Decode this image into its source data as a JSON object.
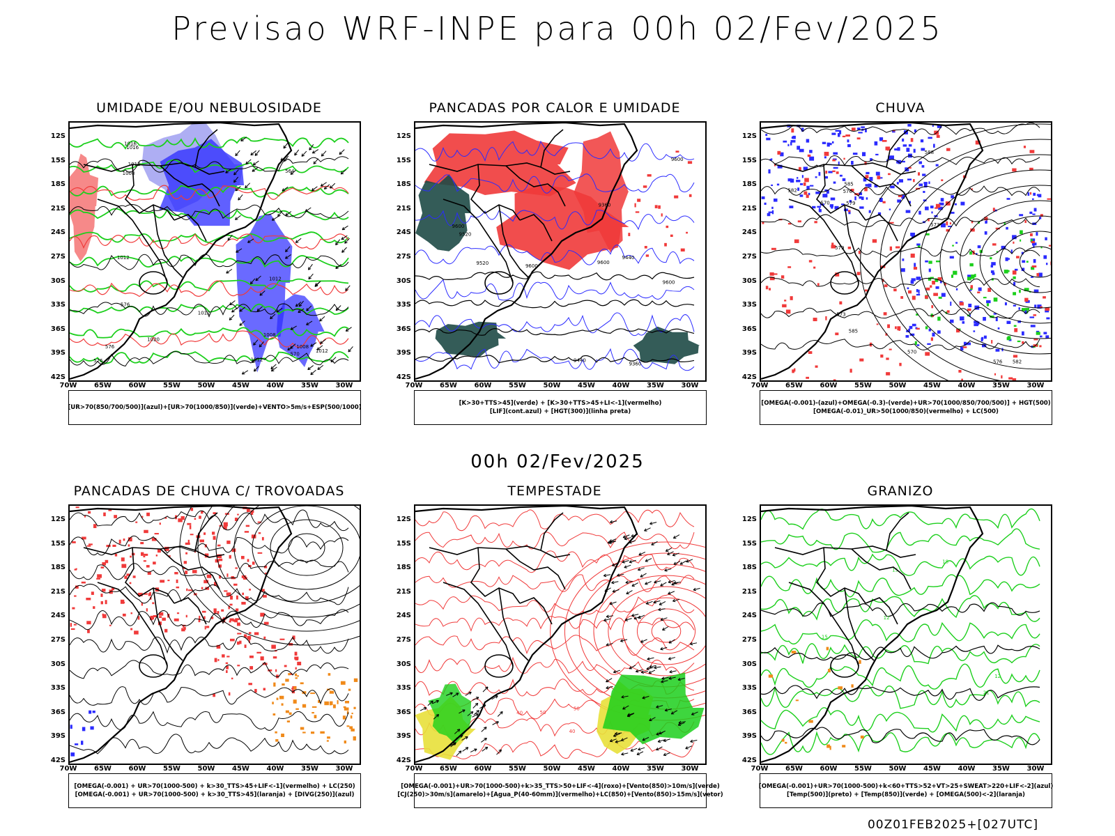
{
  "header": {
    "title": "Previsao WRF-INPE  para 00h 02/Fev/2025",
    "middle_date": "00h 02/Fev/2025",
    "footer_stamp": "00Z01FEB2025+[027UTC]"
  },
  "axes": {
    "lat_labels": [
      "12S",
      "15S",
      "18S",
      "21S",
      "24S",
      "27S",
      "30S",
      "33S",
      "36S",
      "39S",
      "42S"
    ],
    "lon_labels": [
      "70W",
      "65W",
      "60W",
      "55W",
      "50W",
      "45W",
      "40W",
      "35W",
      "30W"
    ]
  },
  "colors": {
    "blue": "#2b2bff",
    "light_blue": "#9a9af0",
    "green": "#1ccf1c",
    "red": "#f03a3a",
    "dark_teal": "#1e4a46",
    "yellow": "#e8e03a",
    "orange": "#f08a1a",
    "black": "#000000"
  },
  "panels": [
    {
      "title": "UMIDADE E/OU NEBULOSIDADE",
      "legend": [
        "[UR>70(850/700/500)](azul)+[UR>70(1000/850)](verde)+VENTO>5m/s+ESP(500/1000)"
      ],
      "contour_labels": [
        "1008",
        "1012",
        "1016",
        "1012",
        "1008",
        "1020",
        "1012",
        "1008",
        "1012",
        "1012",
        "1016",
        "1012",
        "576",
        "570",
        "564",
        "576",
        "576"
      ]
    },
    {
      "title": "PANCADAS POR CALOR E UMIDADE",
      "legend": [
        "[K>30+TTS>45](verde) + [K>30+TTS>45+LI<-1](vermelho)",
        "[LIF](cont.azul) + [HGT(300)](linha preta)"
      ],
      "contour_labels": [
        "9600",
        "9600",
        "9600",
        "9600",
        "9600",
        "9520",
        "9520",
        "9440",
        "9440",
        "9360",
        "9360"
      ]
    },
    {
      "title": "CHUVA",
      "legend": [
        "[OMEGA(-0.001)-(azul)+OMEGA(-0.3)-(verde)+UR>70(1000/850/700/500)] + HGT(500)",
        "[OMEGA(-0.01)_UR>50(1000/850)(vermelho) + LC(500)"
      ],
      "contour_labels": [
        "582",
        "588",
        "585",
        "582",
        "579",
        "576",
        "573",
        "570",
        "579",
        "576",
        "573",
        "570",
        "585"
      ]
    },
    {
      "title": "PANCADAS DE CHUVA C/ TROVOADAS",
      "legend": [
        "[OMEGA(-0.001) + UR>70(1000-500) + k>30_TTS>45+LIF<-1](vermelho) + LC(250)",
        "[OMEGA(-0.001) + UR>70(1000-500) + k>30_TTS>45](laranja) + [DIVG(250)](azul)"
      ],
      "contour_labels": []
    },
    {
      "title": "TEMPESTADE",
      "legend": [
        "[OMEGA(-0.001)+UR>70(1000-500)+k>35_TTS>50+LIF<-4](roxo)+[Vento(850)>10m/s](verde)",
        "[CJ(250)>30m/s](amarelo)+[Agua_P(40-60mm)](vermelho)+LC(850)+[Vento(850)>15m/s](vetor)"
      ],
      "contour_labels": [
        "50",
        "40",
        "50",
        "40"
      ]
    },
    {
      "title": "GRANIZO",
      "legend": [
        "[OMEGA(-0.001)+UR>70(1000-500)+k<60+TTS>52+VT>25+SWEAT>220+LIF<-2](azul)",
        "[Temp(500)](preto) + [Temp(850)](verde) + [OMEGA(500)<-2](laranja)"
      ],
      "contour_labels": [
        "12",
        "15",
        "18",
        "21",
        "15",
        "12"
      ]
    }
  ]
}
